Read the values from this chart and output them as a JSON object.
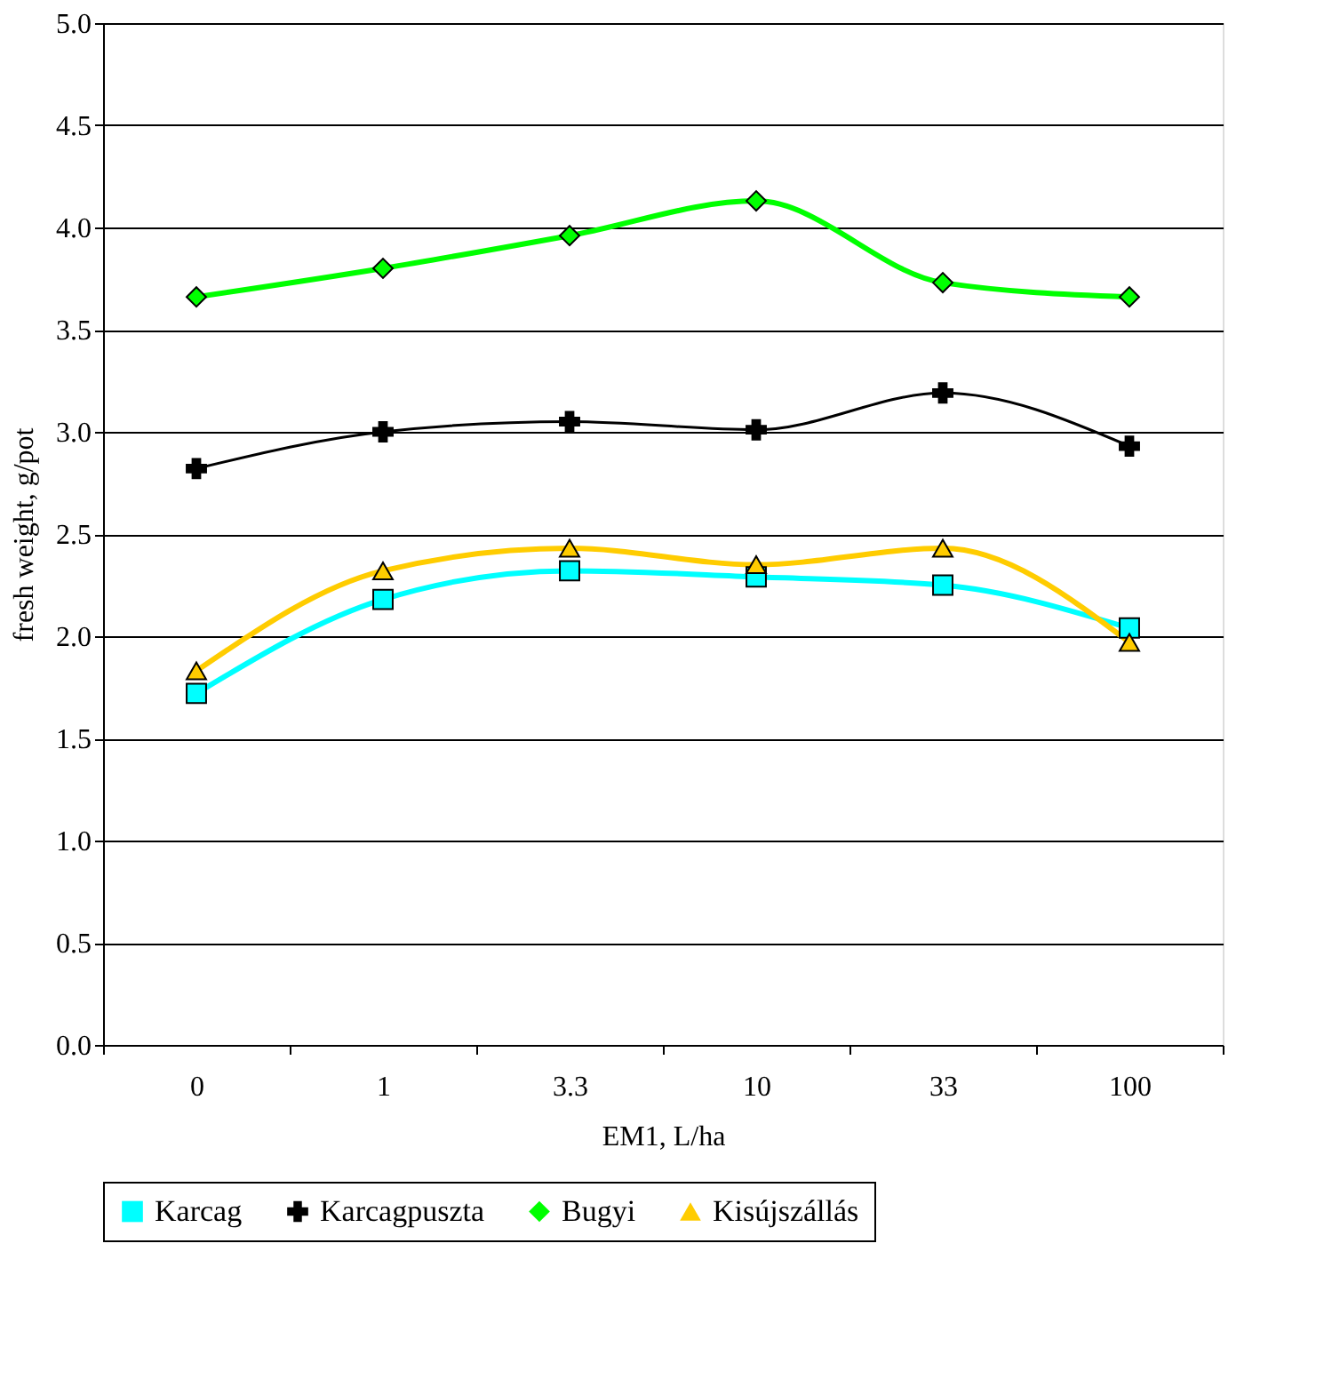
{
  "chart_data": {
    "type": "line",
    "xlabel": "EM1, L/ha",
    "ylabel": "fresh weight, g/pot",
    "categories": [
      "0",
      "1",
      "3.3",
      "10",
      "33",
      "100"
    ],
    "series": [
      {
        "name": "Karcag",
        "color": "#00ffff",
        "marker": "square",
        "values": [
          1.72,
          2.18,
          2.32,
          2.29,
          2.25,
          2.04
        ]
      },
      {
        "name": "Karcagpuszta",
        "color": "#000000",
        "marker": "cross",
        "values": [
          2.82,
          3.0,
          3.05,
          3.01,
          3.19,
          2.93
        ]
      },
      {
        "name": "Bugyi",
        "color": "#00ff00",
        "marker": "diamond",
        "values": [
          3.66,
          3.8,
          3.96,
          4.13,
          3.73,
          3.66
        ]
      },
      {
        "name": "Kisújszállás",
        "color": "#ffcc00",
        "marker": "triangle",
        "values": [
          1.83,
          2.32,
          2.43,
          2.35,
          2.43,
          1.97
        ]
      }
    ],
    "ylim": [
      0,
      5
    ],
    "yticks": [
      {
        "value": 0,
        "label": "0.0"
      },
      {
        "value": 0.5,
        "label": "0.5"
      },
      {
        "value": 1,
        "label": "1.0"
      },
      {
        "value": 1.5,
        "label": "1.5"
      },
      {
        "value": 2,
        "label": "2.0"
      },
      {
        "value": 2.5,
        "label": "2.5"
      },
      {
        "value": 3,
        "label": "3.0"
      },
      {
        "value": 3.5,
        "label": "3.5"
      },
      {
        "value": 4,
        "label": "4.0"
      },
      {
        "value": 4.5,
        "label": "4.5"
      },
      {
        "value": 5,
        "label": "5.0"
      }
    ],
    "grid": "y",
    "legend": "bottom"
  }
}
